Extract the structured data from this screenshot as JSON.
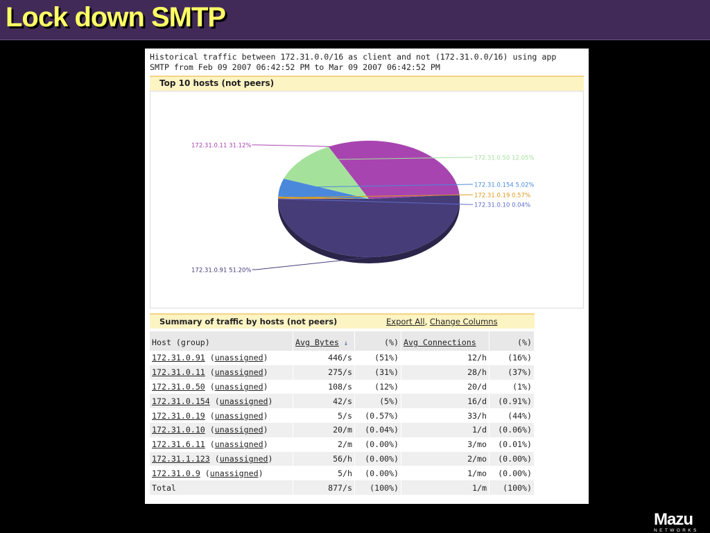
{
  "slide": {
    "title": "Lock down SMTP",
    "logo_text": "Mazu",
    "logo_subtext": "NETWORKS"
  },
  "report": {
    "caption_line1": "Historical traffic between 172.31.0.0/16 as client and not (172.31.0.0/16) using app",
    "caption_line2": "SMTP from Feb 09 2007 06:42:52 PM to Mar 09 2007 06:42:52 PM",
    "chart_heading": "Top 10 hosts (not peers)",
    "summary_heading": "Summary of traffic by hosts (not peers)",
    "export_all": "Export All",
    "link_separator": ",",
    "change_columns": "Change Columns"
  },
  "chart_data": {
    "type": "pie",
    "title": "Top 10 hosts (not peers)",
    "slices": [
      {
        "label": "172.31.0.91  51.20%",
        "value": 51.2,
        "color": "#463c78"
      },
      {
        "label": "172.31.0.11  31.12%",
        "value": 31.12,
        "color": "#a844b0"
      },
      {
        "label": "172.31.0.50  12.05%",
        "value": 12.05,
        "color": "#a4e29c"
      },
      {
        "label": "172.31.0.154  5.02%",
        "value": 5.02,
        "color": "#4a88dc"
      },
      {
        "label": "172.31.0.19  0.57%",
        "value": 0.57,
        "color": "#dc9a1c"
      },
      {
        "label": "172.31.0.10  0.04%",
        "value": 0.04,
        "color": "#5c6cc8"
      }
    ]
  },
  "table": {
    "headers": {
      "host": "Host (group)",
      "avg_bytes": "Avg Bytes",
      "sort_arrow": "↓",
      "pct1": "(%)",
      "avg_conn": "Avg Connections",
      "pct2": "(%)"
    },
    "rows": [
      {
        "host": "172.31.0.91",
        "group": "unassigned",
        "bytes": "446/s",
        "bytes_pct": "(51%)",
        "conn": "12/h",
        "conn_pct": "(16%)"
      },
      {
        "host": "172.31.0.11",
        "group": "unassigned",
        "bytes": "275/s",
        "bytes_pct": "(31%)",
        "conn": "28/h",
        "conn_pct": "(37%)"
      },
      {
        "host": "172.31.0.50",
        "group": "unassigned",
        "bytes": "108/s",
        "bytes_pct": "(12%)",
        "conn": "20/d",
        "conn_pct": "(1%)"
      },
      {
        "host": "172.31.0.154",
        "group": "unassigned",
        "bytes": "42/s",
        "bytes_pct": "(5%)",
        "conn": "16/d",
        "conn_pct": "(0.91%)"
      },
      {
        "host": "172.31.0.19",
        "group": "unassigned",
        "bytes": "5/s",
        "bytes_pct": "(0.57%)",
        "conn": "33/h",
        "conn_pct": "(44%)"
      },
      {
        "host": "172.31.0.10",
        "group": "unassigned",
        "bytes": "20/m",
        "bytes_pct": "(0.04%)",
        "conn": "1/d",
        "conn_pct": "(0.06%)"
      },
      {
        "host": "172.31.6.11",
        "group": "unassigned",
        "bytes": "2/m",
        "bytes_pct": "(0.00%)",
        "conn": "3/mo",
        "conn_pct": "(0.01%)"
      },
      {
        "host": "172.31.1.123",
        "group": "unassigned",
        "bytes": "56/h",
        "bytes_pct": "(0.00%)",
        "conn": "2/mo",
        "conn_pct": "(0.00%)"
      },
      {
        "host": "172.31.0.9",
        "group": "unassigned",
        "bytes": "5/h",
        "bytes_pct": "(0.00%)",
        "conn": "1/mo",
        "conn_pct": "(0.00%)"
      }
    ],
    "total": {
      "label": "Total",
      "bytes": "877/s",
      "bytes_pct": "(100%)",
      "conn": "1/m",
      "conn_pct": "(100%)"
    }
  }
}
